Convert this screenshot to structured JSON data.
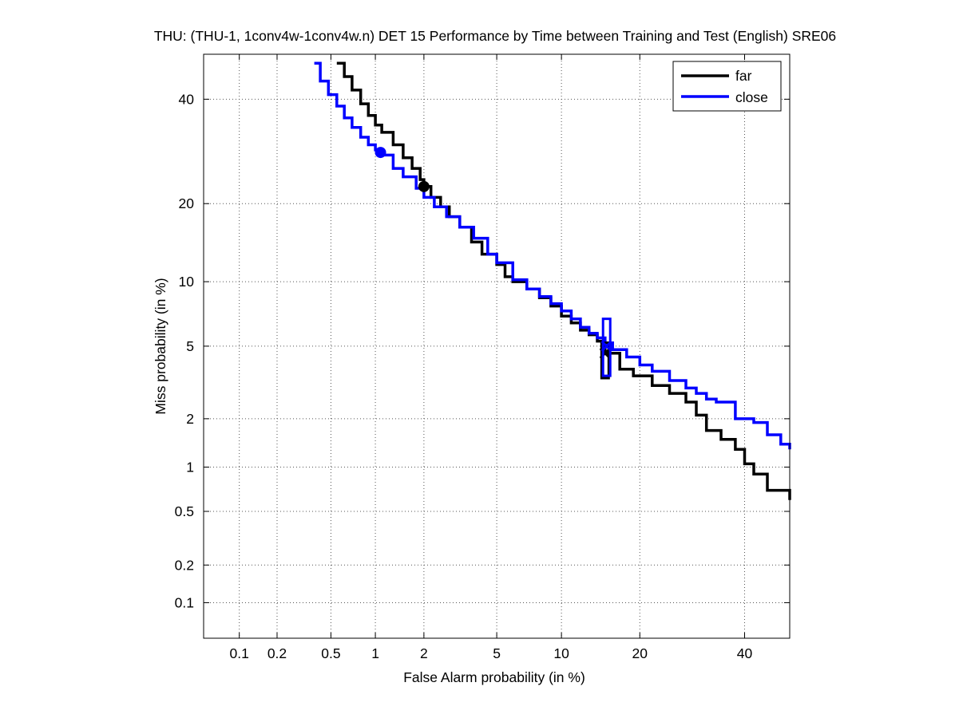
{
  "chart_data": {
    "type": "line",
    "scale": "probit (DET)",
    "title": "THU: (THU-1, 1conv4w-1conv4w.n) DET 15 Performance by Time between Training and Test (English) SRE06",
    "xlabel": "False Alarm probability (in %)",
    "ylabel": "Miss probability (in %)",
    "xlim": [
      0.05,
      50
    ],
    "ylim": [
      0.05,
      50
    ],
    "xticks": [
      0.1,
      0.2,
      0.5,
      1,
      2,
      5,
      10,
      20,
      40
    ],
    "xtick_labels": [
      "0.1",
      "0.2",
      "0.5",
      "1",
      "2",
      "5",
      "10",
      "20",
      "40"
    ],
    "yticks": [
      0.1,
      0.2,
      0.5,
      1,
      2,
      5,
      10,
      20,
      40
    ],
    "ytick_labels": [
      "0.1",
      "0.2",
      "0.5",
      "1",
      "2",
      "5",
      "10",
      "20",
      "40"
    ],
    "grid": true,
    "legend_position": "top-right",
    "series": [
      {
        "name": "far",
        "color": "#000000",
        "x": [
          0.55,
          0.62,
          0.7,
          0.8,
          0.9,
          1.0,
          1.1,
          1.3,
          1.5,
          1.7,
          1.9,
          2.0,
          2.2,
          2.5,
          2.8,
          3.2,
          3.7,
          4.2,
          5.0,
          5.5,
          6.0,
          7.0,
          8.0,
          9.0,
          10.0,
          11.0,
          12.0,
          13.0,
          14.0,
          15.0,
          17.0,
          19.0,
          22.0,
          25.0,
          28.0,
          30.0,
          32.0,
          35.0,
          38.0,
          40.0,
          42.0,
          45.0,
          50.0
        ],
        "y": [
          48.0,
          45.0,
          42.0,
          39.0,
          36.5,
          34.5,
          33.0,
          30.5,
          28.0,
          26.0,
          24.0,
          22.8,
          21.0,
          19.5,
          18.0,
          16.5,
          14.5,
          13.0,
          11.8,
          10.5,
          10.0,
          9.3,
          8.5,
          7.8,
          7.0,
          6.5,
          6.0,
          5.7,
          5.3,
          4.6,
          3.8,
          3.5,
          3.1,
          2.8,
          2.5,
          2.1,
          1.7,
          1.5,
          1.3,
          1.05,
          0.9,
          0.7,
          0.6
        ]
      },
      {
        "name": "close",
        "color": "#0000ff",
        "x": [
          0.38,
          0.42,
          0.48,
          0.55,
          0.62,
          0.7,
          0.8,
          0.9,
          1.0,
          1.08,
          1.3,
          1.5,
          1.8,
          2.0,
          2.3,
          2.7,
          3.2,
          3.8,
          4.5,
          5.0,
          6.0,
          7.0,
          8.0,
          9.0,
          10.0,
          11.0,
          12.0,
          13.0,
          14.0,
          15.0,
          16.0,
          18.0,
          20.0,
          22.0,
          25.0,
          28.0,
          30.0,
          32.0,
          34.0,
          38.0,
          42.0,
          45.0,
          48.0,
          50.0
        ],
        "y": [
          48.0,
          44.0,
          41.0,
          38.5,
          36.0,
          34.0,
          32.0,
          30.5,
          29.5,
          28.5,
          26.0,
          24.5,
          22.5,
          21.0,
          19.5,
          18.0,
          16.5,
          15.0,
          13.0,
          12.0,
          10.2,
          9.3,
          8.6,
          8.0,
          7.4,
          6.8,
          6.2,
          5.8,
          5.5,
          5.2,
          4.8,
          4.4,
          4.0,
          3.7,
          3.3,
          3.0,
          2.8,
          2.6,
          2.5,
          2.0,
          1.9,
          1.6,
          1.4,
          1.3
        ]
      }
    ],
    "markers": [
      {
        "series": "far",
        "label": "far min DCF point",
        "shape": "circle",
        "x": 2.0,
        "y": 22.8
      },
      {
        "series": "close",
        "label": "close min DCF point",
        "shape": "circle",
        "x": 1.08,
        "y": 29.0
      },
      {
        "series": "far",
        "label": "far actual decision point",
        "shape": "box",
        "x": 15.0,
        "y": 4.6,
        "y_low": 3.4,
        "y_high": 5.2
      },
      {
        "series": "close",
        "label": "close actual decision point",
        "shape": "box",
        "x": 15.2,
        "y": 5.0,
        "y_low": 3.5,
        "y_high": 6.8
      }
    ]
  }
}
